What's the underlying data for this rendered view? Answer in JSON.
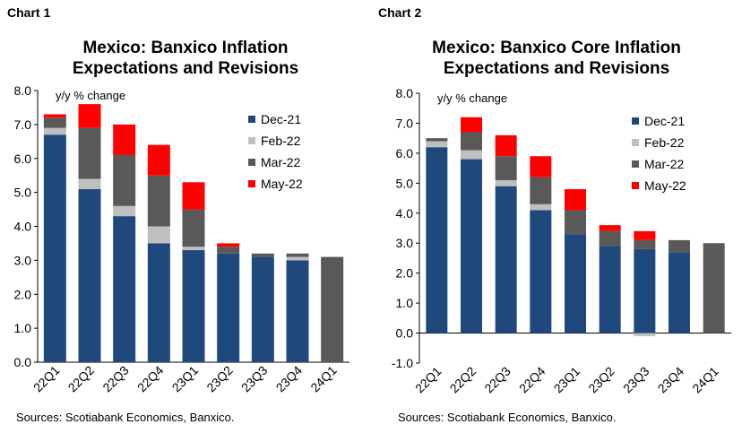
{
  "chart_data": [
    {
      "type": "bar",
      "stacked": true,
      "chart_label": "Chart 1",
      "title_lines": [
        "Mexico: Banxico Inflation",
        "Expectations and Revisions"
      ],
      "ylabel": "y/y % change",
      "ylim": [
        0,
        8
      ],
      "yticks": [
        "0.0",
        "1.0",
        "2.0",
        "3.0",
        "4.0",
        "5.0",
        "6.0",
        "7.0",
        "8.0"
      ],
      "categories": [
        "22Q1",
        "22Q2",
        "22Q3",
        "22Q4",
        "23Q1",
        "23Q2",
        "23Q3",
        "23Q4",
        "24Q1"
      ],
      "legend_position": "right",
      "series": [
        {
          "name": "Dec-21",
          "color": "#1f497d",
          "values": [
            6.7,
            5.1,
            4.3,
            3.5,
            3.3,
            3.2,
            3.1,
            3.0,
            null
          ]
        },
        {
          "name": "Feb-22",
          "color": "#bfbfbf",
          "values": [
            0.2,
            0.3,
            0.3,
            0.5,
            0.1,
            0.0,
            0.0,
            0.1,
            null
          ]
        },
        {
          "name": "Mar-22",
          "color": "#595959",
          "values": [
            0.3,
            1.5,
            1.5,
            1.5,
            1.1,
            0.2,
            0.1,
            0.1,
            3.1
          ]
        },
        {
          "name": "May-22",
          "color": "#ff0000",
          "values": [
            0.1,
            0.7,
            0.9,
            0.9,
            0.8,
            0.1,
            0.0,
            0.0,
            null
          ]
        }
      ],
      "source": "Sources: Scotiabank Economics, Banxico."
    },
    {
      "type": "bar",
      "stacked": true,
      "chart_label": "Chart 2",
      "title_lines": [
        "Mexico: Banxico Core Inflation",
        "Expectations and Revisions"
      ],
      "ylabel": "y/y % change",
      "ylim": [
        -1,
        8
      ],
      "yticks": [
        "-1.0",
        "0.0",
        "1.0",
        "2.0",
        "3.0",
        "4.0",
        "5.0",
        "6.0",
        "7.0",
        "8.0"
      ],
      "categories": [
        "22Q1",
        "22Q2",
        "22Q3",
        "22Q4",
        "23Q1",
        "23Q2",
        "23Q3",
        "23Q4",
        "24Q1"
      ],
      "legend_position": "right",
      "series": [
        {
          "name": "Dec-21",
          "color": "#1f497d",
          "values": [
            6.2,
            5.8,
            4.9,
            4.1,
            3.3,
            2.9,
            2.8,
            2.7,
            null
          ]
        },
        {
          "name": "Feb-22",
          "color": "#bfbfbf",
          "values": [
            0.2,
            0.3,
            0.2,
            0.2,
            0.0,
            0.0,
            -0.1,
            0.0,
            null
          ]
        },
        {
          "name": "Mar-22",
          "color": "#595959",
          "values": [
            0.1,
            0.6,
            0.8,
            0.9,
            0.8,
            0.5,
            0.3,
            0.4,
            3.0
          ]
        },
        {
          "name": "May-22",
          "color": "#ff0000",
          "values": [
            0.0,
            0.5,
            0.7,
            0.7,
            0.7,
            0.2,
            0.3,
            0.0,
            null
          ]
        }
      ],
      "source": "Sources: Scotiabank Economics, Banxico."
    }
  ]
}
